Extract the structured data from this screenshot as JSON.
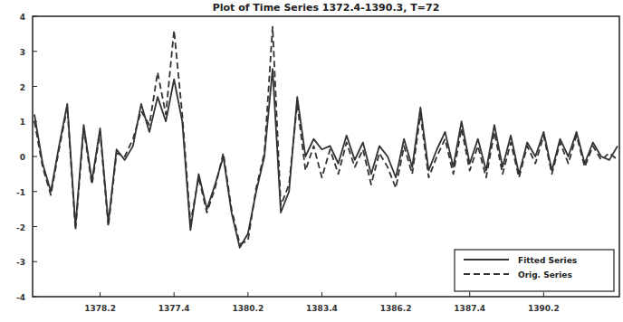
{
  "chart_data": {
    "type": "line",
    "title": "Plot of Time Series 1372.4-1390.3, T=72",
    "categories": [
      null,
      null,
      null,
      null,
      null,
      null,
      null,
      null,
      "1378.2",
      null,
      null,
      null,
      null,
      null,
      null,
      null,
      null,
      "1377.4",
      null,
      null,
      null,
      null,
      null,
      null,
      null,
      null,
      "1380.2",
      null,
      null,
      null,
      null,
      null,
      null,
      null,
      null,
      "1383.4",
      null,
      null,
      null,
      null,
      null,
      null,
      null,
      null,
      "1386.2",
      null,
      null,
      null,
      null,
      null,
      null,
      null,
      null,
      "1387.4",
      null,
      null,
      null,
      null,
      null,
      null,
      null,
      null,
      "1390.2",
      null,
      null,
      null,
      null,
      null,
      null,
      null,
      null,
      null
    ],
    "series": [
      {
        "name": "Fitted Series",
        "color": "#333333",
        "line_style": "solid",
        "values": [
          1.2,
          -0.2,
          -1.0,
          0.3,
          1.5,
          -2.0,
          0.9,
          -0.7,
          0.8,
          -1.9,
          0.2,
          -0.1,
          0.3,
          1.5,
          0.7,
          1.7,
          1.0,
          2.2,
          1.0,
          -2.1,
          -0.5,
          -1.5,
          -0.8,
          0.0,
          -1.6,
          -2.6,
          -2.2,
          -1.0,
          0.0,
          2.5,
          -1.6,
          -1.0,
          1.7,
          0.0,
          0.5,
          0.2,
          0.3,
          -0.2,
          0.6,
          -0.1,
          0.4,
          -0.5,
          0.3,
          0.0,
          -0.6,
          0.5,
          -0.3,
          1.4,
          -0.4,
          0.2,
          0.7,
          -0.3,
          1.0,
          -0.2,
          0.5,
          -0.4,
          0.9,
          -0.3,
          0.6,
          -0.5,
          0.4,
          0.0,
          0.7,
          -0.4,
          0.5,
          0.0,
          0.7,
          -0.2,
          0.4,
          0.0,
          -0.1,
          0.3
        ]
      },
      {
        "name": "Orig. Series",
        "color": "#333333",
        "line_style": "dashed",
        "values": [
          1.0,
          -0.3,
          -1.1,
          0.2,
          1.4,
          -2.1,
          0.8,
          -0.8,
          0.7,
          -2.0,
          0.1,
          0.0,
          0.5,
          1.3,
          0.9,
          2.4,
          1.2,
          3.6,
          1.2,
          -1.9,
          -0.6,
          -1.6,
          -0.9,
          0.1,
          -1.5,
          -2.5,
          -2.4,
          -0.9,
          0.1,
          3.7,
          -1.4,
          -0.8,
          1.5,
          -0.4,
          0.3,
          -0.6,
          0.2,
          -0.5,
          0.4,
          -0.3,
          0.2,
          -0.8,
          0.1,
          -0.3,
          -0.9,
          0.3,
          -0.5,
          1.2,
          -0.6,
          0.0,
          0.5,
          -0.5,
          0.8,
          -0.4,
          0.3,
          -0.6,
          0.7,
          -0.5,
          0.4,
          -0.6,
          0.3,
          -0.2,
          0.6,
          -0.5,
          0.4,
          -0.2,
          0.6,
          -0.3,
          0.3,
          -0.1,
          0.1,
          -0.1
        ]
      }
    ],
    "ylim": [
      -4,
      4
    ],
    "yticks": [
      -4,
      -3,
      -2,
      -1,
      0,
      1,
      2,
      3,
      4
    ],
    "grid": false,
    "legend": "lower right"
  }
}
